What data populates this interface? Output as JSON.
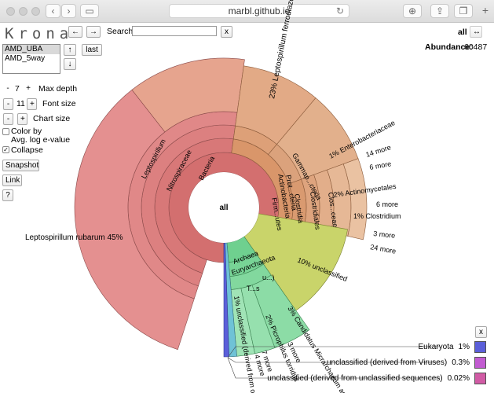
{
  "browser": {
    "url": "marbl.github.io"
  },
  "app": {
    "logo": "Krona"
  },
  "toolbar": {
    "back_label": "←",
    "forward_label": "→",
    "search_label": "Search:",
    "clear_label": "x",
    "focus_label": "all",
    "expand_label": "↔",
    "abundance_label": "Abundance:",
    "abundance_value": "60487"
  },
  "datasets": {
    "items": [
      "AMD_UBA",
      "AMD_5way"
    ],
    "selected": "AMD_UBA",
    "up_label": "↑",
    "down_label": "↓",
    "last_label": "last"
  },
  "settings": {
    "max_depth_label": "Max depth",
    "max_depth_value": "7",
    "font_size_label": "Font size",
    "font_size_value": "11",
    "chart_size_label": "Chart size",
    "minus_label": "-",
    "plus_label": "+",
    "color_by_label_1": "Color by",
    "color_by_label_2": "Avg. log e-value",
    "collapse_label": "Collapse",
    "collapse_checked": "✓",
    "snapshot_label": "Snapshot",
    "link_label": "Link",
    "help_label": "?"
  },
  "chart": {
    "center_label": "all",
    "labels": {
      "bacteria": "Bacteria",
      "nitrospiraceae": "Nitrospiraceae",
      "leptospirillum": "Leptospirillum",
      "rubarum": "Leptospirillum rubarum   45%",
      "ferrodiazotrophum": "23%   Leptospirillum ferrodiazo...",
      "gamma": "Gammap...cteria",
      "prot": "Prot...cteria",
      "acti": "Actinobacteria",
      "firm": "Firm...utes",
      "clostridia": "Clostridia",
      "clostridiales": "Clostridiales",
      "clos": "Clos...ceae",
      "entero": "1%   Enterobacteriaceae",
      "more14": "14 more",
      "more6a": "6 more",
      "actinomyc": "2%   Actinomycetales",
      "more6b": "6 more",
      "clostridium": "1%   Clostridium",
      "more3a": "3 more",
      "more24": "24 more",
      "unclassified": "10%   unclassified",
      "archaea": "Archaea",
      "eury": "Euryarchaeota",
      "ts": "T...s",
      "u": "u...)",
      "cand": "3%   Candidatus Micrarchaeum aci...",
      "picro": "2%   Picrophilus torridus",
      "more7": "7 more",
      "more4": "4 more",
      "more3b": "3 more",
      "ucs": "1%   unclassified (derived from or..."
    }
  },
  "key": {
    "close_label": "x",
    "items": [
      {
        "name": "Eukaryota",
        "pct": "1%",
        "color": "#5b5fd9"
      },
      {
        "name": "unclassified (derived from Viruses)",
        "pct": "0.3%",
        "color": "#c25bd1"
      },
      {
        "name": "unclassified (derived from unclassified sequences)",
        "pct": "0.02%",
        "color": "#d15ba5"
      }
    ]
  },
  "colors": {
    "bacteria": "#d36f6f",
    "proteo": "#d9966a",
    "unclassified": "#c9d46a",
    "archaea": "#6fd08f",
    "eukaryota": "#5b5fd9",
    "viruses": "#c25bd1",
    "unclassified_seq": "#d15ba5"
  }
}
